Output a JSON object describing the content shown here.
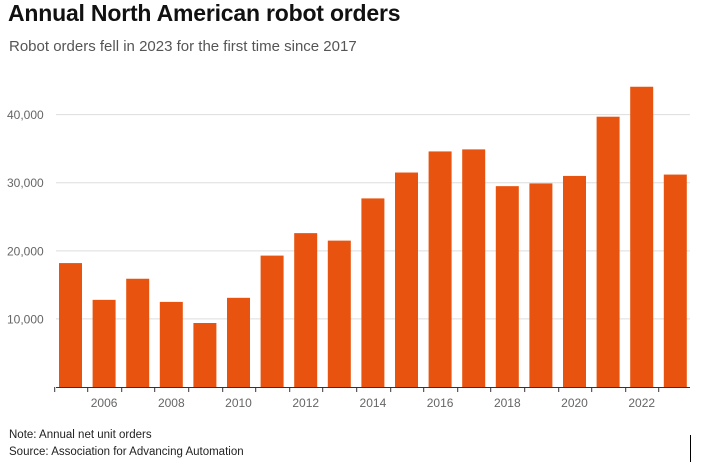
{
  "header": {
    "title": "Annual North American robot orders",
    "subtitle": "Robot orders fell in 2023 for the first time since 2017"
  },
  "footer": {
    "note": "Note: Annual net unit orders",
    "source": "Source: Association for Advancing Automation"
  },
  "colors": {
    "bar": "#e8540f",
    "grid": "#dddddd",
    "axis": "#333333",
    "tick_text": "#666666"
  },
  "chart_data": {
    "type": "bar",
    "title": "Annual North American robot orders",
    "subtitle": "Robot orders fell in 2023 for the first time since 2017",
    "xlabel": "",
    "ylabel": "",
    "categories": [
      "2005",
      "2006",
      "2007",
      "2008",
      "2009",
      "2010",
      "2011",
      "2012",
      "2013",
      "2014",
      "2015",
      "2016",
      "2017",
      "2018",
      "2019",
      "2020",
      "2021",
      "2022",
      "2023"
    ],
    "values": [
      18200,
      12800,
      15900,
      12500,
      9400,
      13100,
      19300,
      22600,
      21500,
      27700,
      31500,
      34600,
      34900,
      29500,
      29900,
      31000,
      39700,
      44100,
      31200
    ],
    "x_tick_labels": [
      "2006",
      "2008",
      "2010",
      "2012",
      "2014",
      "2016",
      "2018",
      "2020",
      "2022"
    ],
    "y_ticks": [
      10000,
      20000,
      30000,
      40000
    ],
    "y_tick_labels": [
      "10,000",
      "20,000",
      "30,000",
      "40,000"
    ],
    "ylim": [
      0,
      47000
    ],
    "grid": true,
    "legend": "none"
  }
}
